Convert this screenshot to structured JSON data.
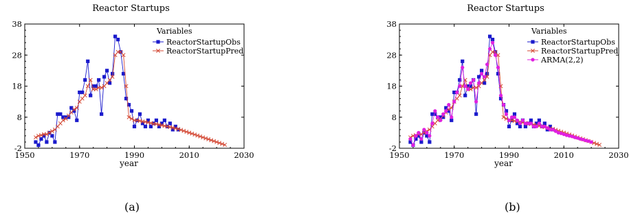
{
  "captions": [
    "(a)",
    "(b)"
  ],
  "chart_data": [
    {
      "type": "line",
      "title": "Reactor Startups",
      "xlabel": "year",
      "ylabel": "",
      "xlim": [
        1950,
        2030
      ],
      "ylim": [
        -2,
        38
      ],
      "xticks": [
        1950,
        1970,
        1990,
        2010,
        2030
      ],
      "yticks": [
        -2,
        8,
        18,
        28,
        38
      ],
      "grid": false,
      "legend_title": "Variables",
      "legend_position": "top-right",
      "series": [
        {
          "name": "ReactorStartupObs",
          "color": "#1a1acc",
          "marker": "square",
          "x": [
            1954,
            1955,
            1956,
            1957,
            1958,
            1959,
            1960,
            1961,
            1962,
            1963,
            1964,
            1965,
            1966,
            1967,
            1968,
            1969,
            1970,
            1971,
            1972,
            1973,
            1974,
            1975,
            1976,
            1977,
            1978,
            1979,
            1980,
            1981,
            1982,
            1983,
            1984,
            1985,
            1986,
            1987,
            1988,
            1989,
            1990,
            1991,
            1992,
            1993,
            1994,
            1995,
            1996,
            1997,
            1998,
            1999,
            2000,
            2001,
            2002,
            2003,
            2004,
            2005,
            2006
          ],
          "values": [
            0,
            -1,
            1,
            2,
            0,
            3,
            2,
            0,
            9,
            9,
            8,
            8,
            8,
            11,
            10,
            7,
            16,
            16,
            20,
            26,
            15,
            18,
            18,
            20,
            9,
            21,
            23,
            19,
            22,
            34,
            33,
            29,
            22,
            14,
            12,
            10,
            5,
            7,
            9,
            6,
            5,
            7,
            5,
            6,
            7,
            5,
            6,
            7,
            5,
            6,
            4,
            5,
            4
          ]
        },
        {
          "name": "ReactorStartupPred",
          "color": "#d44a36",
          "marker": "x",
          "x": [
            1954,
            1955,
            1956,
            1957,
            1958,
            1959,
            1960,
            1961,
            1962,
            1963,
            1964,
            1965,
            1966,
            1967,
            1968,
            1969,
            1970,
            1971,
            1972,
            1973,
            1974,
            1975,
            1976,
            1977,
            1978,
            1979,
            1980,
            1981,
            1982,
            1983,
            1984,
            1985,
            1986,
            1987,
            1988,
            1989,
            1990,
            1991,
            1992,
            1993,
            1994,
            1995,
            1996,
            1997,
            1998,
            1999,
            2000,
            2001,
            2002,
            2003,
            2004,
            2005,
            2006,
            2007,
            2008,
            2009,
            2010,
            2011,
            2012,
            2013,
            2014,
            2015,
            2016,
            2017,
            2018,
            2019,
            2020,
            2021,
            2022,
            2023
          ],
          "values": [
            1.5,
            2,
            2.2,
            2.5,
            2.5,
            3,
            3.5,
            4,
            5,
            6,
            7,
            7.5,
            8.5,
            9.5,
            10.5,
            11,
            13,
            14,
            15,
            18,
            20,
            17,
            17,
            17.5,
            17.5,
            18,
            19,
            20,
            21,
            28,
            29,
            29,
            28,
            18,
            8,
            7.5,
            7,
            7,
            6.8,
            6.6,
            6.5,
            6.3,
            6.1,
            5.9,
            5.8,
            5.6,
            5.4,
            5.2,
            5,
            4.8,
            4.6,
            4.4,
            4.2,
            3.9,
            3.6,
            3.3,
            3,
            2.7,
            2.4,
            2.1,
            1.8,
            1.5,
            1.2,
            0.9,
            0.6,
            0.3,
            0,
            -0.3,
            -0.6,
            -0.9
          ]
        }
      ]
    },
    {
      "type": "line",
      "title": "Reactor Startups",
      "xlabel": "year",
      "ylabel": "",
      "xlim": [
        1950,
        2030
      ],
      "ylim": [
        -2,
        38
      ],
      "xticks": [
        1950,
        1970,
        1990,
        2010,
        2030
      ],
      "yticks": [
        -2,
        8,
        18,
        28,
        38
      ],
      "grid": false,
      "legend_title": "Variables",
      "legend_position": "top-right",
      "series": [
        {
          "name": "ReactorStartupObs",
          "color": "#1a1acc",
          "marker": "square",
          "x": [
            1954,
            1955,
            1956,
            1957,
            1958,
            1959,
            1960,
            1961,
            1962,
            1963,
            1964,
            1965,
            1966,
            1967,
            1968,
            1969,
            1970,
            1971,
            1972,
            1973,
            1974,
            1975,
            1976,
            1977,
            1978,
            1979,
            1980,
            1981,
            1982,
            1983,
            1984,
            1985,
            1986,
            1987,
            1988,
            1989,
            1990,
            1991,
            1992,
            1993,
            1994,
            1995,
            1996,
            1997,
            1998,
            1999,
            2000,
            2001,
            2002,
            2003,
            2004,
            2005,
            2006
          ],
          "values": [
            0,
            -1,
            1,
            2,
            0,
            3,
            2,
            0,
            9,
            9,
            8,
            8,
            8,
            11,
            10,
            7,
            16,
            16,
            20,
            26,
            15,
            18,
            18,
            20,
            9,
            21,
            23,
            19,
            22,
            34,
            33,
            29,
            22,
            14,
            12,
            10,
            5,
            7,
            9,
            6,
            5,
            7,
            5,
            6,
            7,
            5,
            6,
            7,
            5,
            6,
            4,
            5,
            4
          ]
        },
        {
          "name": "ReactorStartupPred",
          "color": "#d44a36",
          "marker": "x",
          "x": [
            1954,
            1955,
            1956,
            1957,
            1958,
            1959,
            1960,
            1961,
            1962,
            1963,
            1964,
            1965,
            1966,
            1967,
            1968,
            1969,
            1970,
            1971,
            1972,
            1973,
            1974,
            1975,
            1976,
            1977,
            1978,
            1979,
            1980,
            1981,
            1982,
            1983,
            1984,
            1985,
            1986,
            1987,
            1988,
            1989,
            1990,
            1991,
            1992,
            1993,
            1994,
            1995,
            1996,
            1997,
            1998,
            1999,
            2000,
            2001,
            2002,
            2003,
            2004,
            2005,
            2006,
            2007,
            2008,
            2009,
            2010,
            2011,
            2012,
            2013,
            2014,
            2015,
            2016,
            2017,
            2018,
            2019,
            2020,
            2021,
            2022,
            2023
          ],
          "values": [
            1.5,
            2,
            2.2,
            2.5,
            2.5,
            3,
            3.5,
            4,
            5,
            6,
            7,
            7.5,
            8.5,
            9.5,
            10.5,
            11,
            13,
            14,
            15,
            18,
            20,
            17,
            17,
            17.5,
            17.5,
            18,
            19,
            20,
            21,
            28,
            29,
            29,
            28,
            18,
            8,
            7.5,
            7,
            7,
            6.8,
            6.6,
            6.5,
            6.3,
            6.1,
            5.9,
            5.8,
            5.6,
            5.4,
            5.2,
            5,
            4.8,
            4.6,
            4.4,
            4.2,
            3.9,
            3.6,
            3.3,
            3,
            2.7,
            2.4,
            2.1,
            1.8,
            1.5,
            1.2,
            0.9,
            0.6,
            0.3,
            0,
            -0.3,
            -0.6,
            -0.9
          ]
        },
        {
          "name": "ARMA(2,2)",
          "color": "#e020e0",
          "marker": "circle",
          "x": [
            1954,
            1955,
            1956,
            1957,
            1958,
            1959,
            1960,
            1961,
            1962,
            1963,
            1964,
            1965,
            1966,
            1967,
            1968,
            1969,
            1970,
            1971,
            1972,
            1973,
            1974,
            1975,
            1976,
            1977,
            1978,
            1979,
            1980,
            1981,
            1982,
            1983,
            1984,
            1985,
            1986,
            1987,
            1988,
            1989,
            1990,
            1991,
            1992,
            1993,
            1994,
            1995,
            1996,
            1997,
            1998,
            1999,
            2000,
            2001,
            2002,
            2003,
            2004,
            2005,
            2006,
            2007,
            2008,
            2009,
            2010,
            2011,
            2012,
            2013,
            2014,
            2015,
            2016,
            2017,
            2018,
            2019,
            2020
          ],
          "values": [
            1,
            -1,
            2,
            3,
            1,
            4,
            3,
            2,
            6,
            10,
            8,
            7,
            9,
            10,
            12,
            8,
            13,
            16,
            18,
            24,
            18,
            17,
            19,
            20,
            13,
            19,
            22,
            21,
            25,
            30,
            32,
            28,
            24,
            15,
            12,
            9,
            7,
            8,
            8,
            7,
            6,
            7,
            6,
            6,
            6,
            5,
            5,
            6,
            5,
            5,
            4.5,
            4,
            4,
            3.5,
            3,
            2.8,
            2.5,
            2.2,
            2,
            1.8,
            1.5,
            1.3,
            1,
            0.8,
            0.5,
            0.3,
            0
          ]
        }
      ]
    }
  ]
}
